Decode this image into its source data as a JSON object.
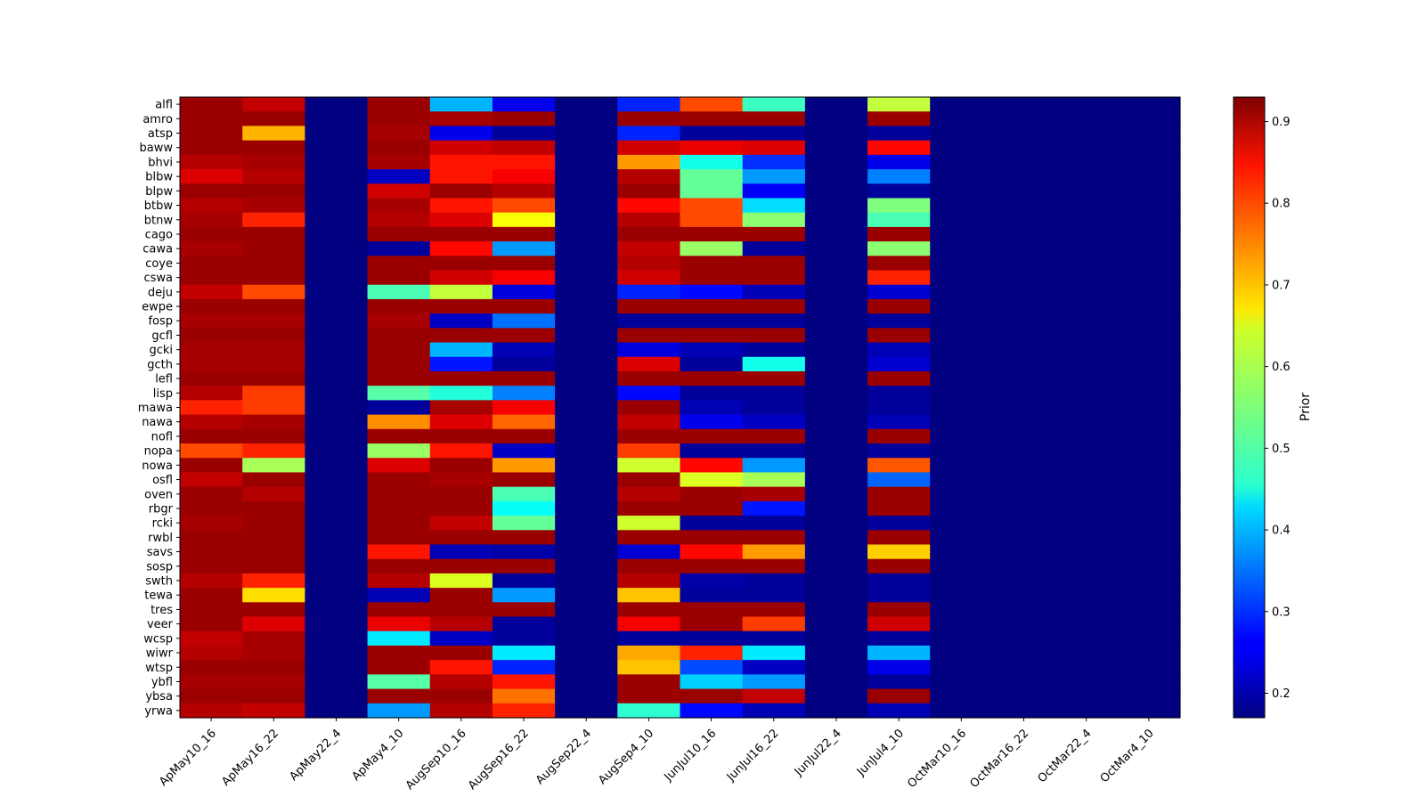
{
  "chart_data": {
    "type": "heatmap",
    "colormap": "jet",
    "colorbar": {
      "label": "Prior",
      "vmin": 0.17,
      "vmax": 0.93,
      "ticks": [
        0.2,
        0.3,
        0.4,
        0.5,
        0.6,
        0.7,
        0.8,
        0.9
      ],
      "tick_labels": [
        "0.2",
        "0.3",
        "0.4",
        "0.5",
        "0.6",
        "0.7",
        "0.8",
        "0.9"
      ]
    },
    "x": [
      "ApMay10_16",
      "ApMay16_22",
      "ApMay22_4",
      "ApMay4_10",
      "AugSep10_16",
      "AugSep16_22",
      "AugSep22_4",
      "AugSep4_10",
      "JunJul10_16",
      "JunJul16_22",
      "JunJul22_4",
      "JunJul4_10",
      "OctMar10_16",
      "OctMar16_22",
      "OctMar22_4",
      "OctMar4_10"
    ],
    "y": [
      "alfl",
      "amro",
      "atsp",
      "baww",
      "bhvi",
      "blbw",
      "blpw",
      "btbw",
      "btnw",
      "cago",
      "cawa",
      "coye",
      "cswa",
      "deju",
      "ewpe",
      "fosp",
      "gcfl",
      "gcki",
      "gcth",
      "lefl",
      "lisp",
      "mawa",
      "nawa",
      "nofl",
      "nopa",
      "nowa",
      "osfl",
      "oven",
      "rbgr",
      "rcki",
      "rwbl",
      "savs",
      "sosp",
      "swth",
      "tewa",
      "tres",
      "veer",
      "wcsp",
      "wiwr",
      "wtsp",
      "ybfl",
      "ybsa",
      "yrwa"
    ],
    "values": [
      [
        0.91,
        0.88,
        0.17,
        0.91,
        0.4,
        0.25,
        0.17,
        0.29,
        0.78,
        0.5,
        0.17,
        0.6,
        0.17,
        0.17,
        0.17,
        0.17
      ],
      [
        0.91,
        0.91,
        0.17,
        0.91,
        0.9,
        0.91,
        0.17,
        0.91,
        0.91,
        0.91,
        0.17,
        0.91,
        0.17,
        0.17,
        0.17,
        0.17
      ],
      [
        0.91,
        0.7,
        0.17,
        0.9,
        0.25,
        0.19,
        0.17,
        0.29,
        0.19,
        0.19,
        0.17,
        0.19,
        0.17,
        0.17,
        0.17,
        0.17
      ],
      [
        0.91,
        0.91,
        0.17,
        0.91,
        0.87,
        0.88,
        0.17,
        0.87,
        0.85,
        0.86,
        0.17,
        0.83,
        0.17,
        0.17,
        0.17,
        0.17
      ],
      [
        0.89,
        0.9,
        0.17,
        0.9,
        0.82,
        0.82,
        0.17,
        0.72,
        0.47,
        0.3,
        0.17,
        0.25,
        0.17,
        0.17,
        0.17,
        0.17
      ],
      [
        0.86,
        0.89,
        0.17,
        0.22,
        0.82,
        0.84,
        0.17,
        0.89,
        0.53,
        0.38,
        0.17,
        0.36,
        0.17,
        0.17,
        0.17,
        0.17
      ],
      [
        0.91,
        0.91,
        0.17,
        0.87,
        0.91,
        0.89,
        0.17,
        0.91,
        0.53,
        0.26,
        0.17,
        0.19,
        0.17,
        0.17,
        0.17,
        0.17
      ],
      [
        0.89,
        0.9,
        0.17,
        0.9,
        0.82,
        0.78,
        0.17,
        0.83,
        0.78,
        0.43,
        0.17,
        0.55,
        0.17,
        0.17,
        0.17,
        0.17
      ],
      [
        0.9,
        0.81,
        0.17,
        0.89,
        0.86,
        0.64,
        0.17,
        0.89,
        0.78,
        0.56,
        0.17,
        0.51,
        0.17,
        0.17,
        0.17,
        0.17
      ],
      [
        0.91,
        0.91,
        0.17,
        0.91,
        0.91,
        0.91,
        0.17,
        0.91,
        0.91,
        0.91,
        0.17,
        0.91,
        0.17,
        0.17,
        0.17,
        0.17
      ],
      [
        0.9,
        0.91,
        0.17,
        0.19,
        0.83,
        0.38,
        0.17,
        0.88,
        0.57,
        0.19,
        0.17,
        0.56,
        0.17,
        0.17,
        0.17,
        0.17
      ],
      [
        0.91,
        0.91,
        0.17,
        0.91,
        0.91,
        0.91,
        0.17,
        0.89,
        0.91,
        0.91,
        0.17,
        0.91,
        0.17,
        0.17,
        0.17,
        0.17
      ],
      [
        0.91,
        0.91,
        0.17,
        0.91,
        0.87,
        0.84,
        0.17,
        0.87,
        0.91,
        0.91,
        0.17,
        0.81,
        0.17,
        0.17,
        0.17,
        0.17
      ],
      [
        0.88,
        0.78,
        0.17,
        0.51,
        0.6,
        0.24,
        0.17,
        0.29,
        0.27,
        0.21,
        0.17,
        0.23,
        0.17,
        0.17,
        0.17,
        0.17
      ],
      [
        0.91,
        0.91,
        0.17,
        0.91,
        0.91,
        0.91,
        0.17,
        0.91,
        0.91,
        0.91,
        0.17,
        0.91,
        0.17,
        0.17,
        0.17,
        0.17
      ],
      [
        0.9,
        0.9,
        0.17,
        0.9,
        0.22,
        0.35,
        0.17,
        0.19,
        0.19,
        0.19,
        0.17,
        0.19,
        0.17,
        0.17,
        0.17,
        0.17
      ],
      [
        0.91,
        0.91,
        0.17,
        0.91,
        0.91,
        0.91,
        0.17,
        0.91,
        0.91,
        0.91,
        0.17,
        0.91,
        0.17,
        0.17,
        0.17,
        0.17
      ],
      [
        0.9,
        0.9,
        0.17,
        0.91,
        0.4,
        0.21,
        0.17,
        0.24,
        0.21,
        0.19,
        0.17,
        0.21,
        0.17,
        0.17,
        0.17,
        0.17
      ],
      [
        0.9,
        0.9,
        0.17,
        0.91,
        0.28,
        0.19,
        0.17,
        0.86,
        0.19,
        0.47,
        0.17,
        0.23,
        0.17,
        0.17,
        0.17,
        0.17
      ],
      [
        0.91,
        0.91,
        0.17,
        0.91,
        0.91,
        0.91,
        0.17,
        0.91,
        0.91,
        0.91,
        0.17,
        0.91,
        0.17,
        0.17,
        0.17,
        0.17
      ],
      [
        0.89,
        0.79,
        0.17,
        0.52,
        0.48,
        0.36,
        0.17,
        0.27,
        0.19,
        0.19,
        0.17,
        0.19,
        0.17,
        0.17,
        0.17,
        0.17
      ],
      [
        0.81,
        0.79,
        0.17,
        0.19,
        0.9,
        0.84,
        0.17,
        0.91,
        0.21,
        0.19,
        0.17,
        0.19,
        0.17,
        0.17,
        0.17,
        0.17
      ],
      [
        0.89,
        0.9,
        0.17,
        0.73,
        0.86,
        0.76,
        0.17,
        0.88,
        0.25,
        0.22,
        0.17,
        0.21,
        0.17,
        0.17,
        0.17,
        0.17
      ],
      [
        0.91,
        0.91,
        0.17,
        0.91,
        0.91,
        0.91,
        0.17,
        0.91,
        0.91,
        0.91,
        0.17,
        0.91,
        0.17,
        0.17,
        0.17,
        0.17
      ],
      [
        0.78,
        0.81,
        0.17,
        0.57,
        0.82,
        0.22,
        0.17,
        0.79,
        0.19,
        0.19,
        0.17,
        0.19,
        0.17,
        0.17,
        0.17,
        0.17
      ],
      [
        0.91,
        0.58,
        0.17,
        0.86,
        0.91,
        0.72,
        0.17,
        0.61,
        0.83,
        0.38,
        0.17,
        0.77,
        0.17,
        0.17,
        0.17,
        0.17
      ],
      [
        0.88,
        0.91,
        0.17,
        0.91,
        0.9,
        0.91,
        0.17,
        0.91,
        0.62,
        0.58,
        0.17,
        0.34,
        0.17,
        0.17,
        0.17,
        0.17
      ],
      [
        0.91,
        0.89,
        0.17,
        0.91,
        0.91,
        0.51,
        0.17,
        0.89,
        0.91,
        0.9,
        0.17,
        0.91,
        0.17,
        0.17,
        0.17,
        0.17
      ],
      [
        0.91,
        0.91,
        0.17,
        0.91,
        0.91,
        0.46,
        0.17,
        0.91,
        0.91,
        0.28,
        0.17,
        0.91,
        0.17,
        0.17,
        0.17,
        0.17
      ],
      [
        0.9,
        0.91,
        0.17,
        0.91,
        0.88,
        0.53,
        0.17,
        0.61,
        0.19,
        0.19,
        0.17,
        0.19,
        0.17,
        0.17,
        0.17,
        0.17
      ],
      [
        0.91,
        0.91,
        0.17,
        0.91,
        0.91,
        0.91,
        0.17,
        0.91,
        0.91,
        0.91,
        0.17,
        0.91,
        0.17,
        0.17,
        0.17,
        0.17
      ],
      [
        0.91,
        0.91,
        0.17,
        0.82,
        0.21,
        0.2,
        0.17,
        0.23,
        0.83,
        0.72,
        0.17,
        0.68,
        0.17,
        0.17,
        0.17,
        0.17
      ],
      [
        0.91,
        0.91,
        0.17,
        0.91,
        0.91,
        0.91,
        0.17,
        0.91,
        0.91,
        0.91,
        0.17,
        0.91,
        0.17,
        0.17,
        0.17,
        0.17
      ],
      [
        0.89,
        0.81,
        0.17,
        0.89,
        0.62,
        0.19,
        0.17,
        0.89,
        0.2,
        0.19,
        0.17,
        0.19,
        0.17,
        0.17,
        0.17,
        0.17
      ],
      [
        0.91,
        0.67,
        0.17,
        0.21,
        0.91,
        0.38,
        0.17,
        0.69,
        0.19,
        0.19,
        0.17,
        0.19,
        0.17,
        0.17,
        0.17,
        0.17
      ],
      [
        0.91,
        0.91,
        0.17,
        0.91,
        0.91,
        0.91,
        0.17,
        0.91,
        0.91,
        0.91,
        0.17,
        0.91,
        0.17,
        0.17,
        0.17,
        0.17
      ],
      [
        0.91,
        0.86,
        0.17,
        0.85,
        0.89,
        0.19,
        0.17,
        0.84,
        0.91,
        0.79,
        0.17,
        0.87,
        0.17,
        0.17,
        0.17,
        0.17
      ],
      [
        0.88,
        0.9,
        0.17,
        0.44,
        0.22,
        0.19,
        0.17,
        0.19,
        0.19,
        0.19,
        0.17,
        0.19,
        0.17,
        0.17,
        0.17,
        0.17
      ],
      [
        0.89,
        0.9,
        0.17,
        0.91,
        0.91,
        0.44,
        0.17,
        0.71,
        0.81,
        0.44,
        0.17,
        0.4,
        0.17,
        0.17,
        0.17,
        0.17
      ],
      [
        0.91,
        0.91,
        0.17,
        0.91,
        0.82,
        0.29,
        0.17,
        0.69,
        0.32,
        0.22,
        0.17,
        0.25,
        0.17,
        0.17,
        0.17,
        0.17
      ],
      [
        0.9,
        0.9,
        0.17,
        0.52,
        0.89,
        0.82,
        0.17,
        0.91,
        0.42,
        0.38,
        0.17,
        0.19,
        0.17,
        0.17,
        0.17,
        0.17
      ],
      [
        0.91,
        0.91,
        0.17,
        0.91,
        0.91,
        0.75,
        0.17,
        0.91,
        0.91,
        0.88,
        0.17,
        0.91,
        0.17,
        0.17,
        0.17,
        0.17
      ],
      [
        0.89,
        0.88,
        0.17,
        0.38,
        0.89,
        0.81,
        0.17,
        0.49,
        0.27,
        0.21,
        0.17,
        0.21,
        0.17,
        0.17,
        0.17,
        0.17
      ]
    ]
  }
}
